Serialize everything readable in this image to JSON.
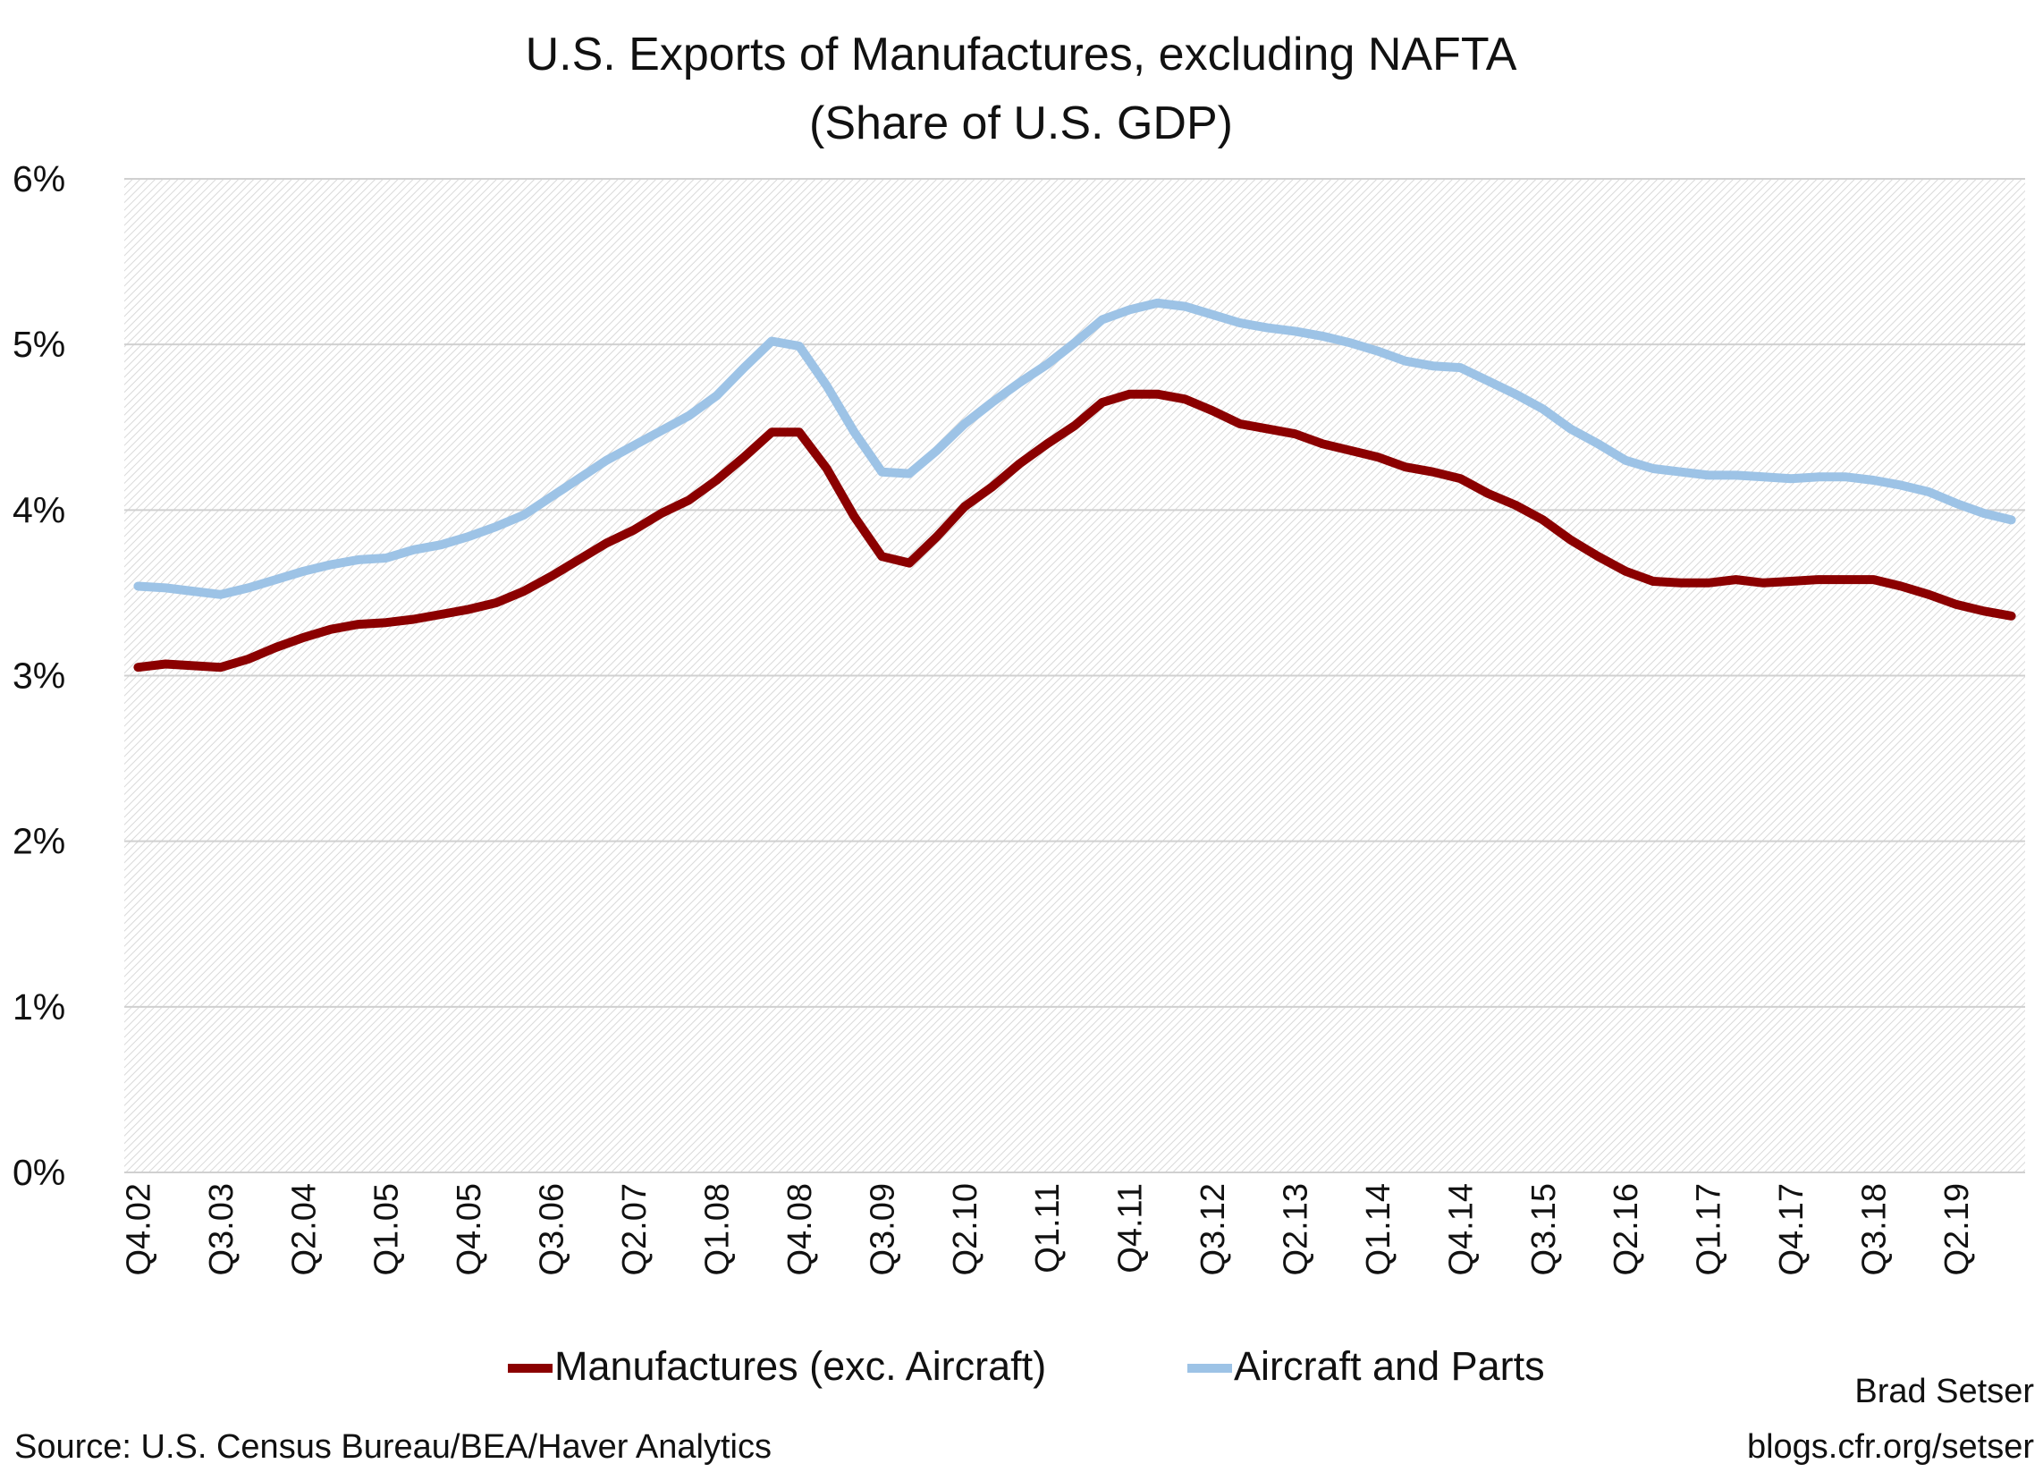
{
  "chart_data": {
    "type": "line",
    "title": "U.S. Exports of Manufactures, excluding NAFTA",
    "subtitle": "(Share of U.S. GDP)",
    "xlabel": "",
    "ylabel": "",
    "ylim": [
      0,
      6
    ],
    "y_ticks": [
      "0%",
      "1%",
      "2%",
      "3%",
      "4%",
      "5%",
      "6%"
    ],
    "grid": true,
    "legend_position": "bottom",
    "x_tick_labels": [
      "Q4.02",
      "Q3.03",
      "Q2.04",
      "Q1.05",
      "Q4.05",
      "Q3.06",
      "Q2.07",
      "Q1.08",
      "Q4.08",
      "Q3.09",
      "Q2.10",
      "Q1.11",
      "Q4.11",
      "Q3.12",
      "Q2.13",
      "Q1.14",
      "Q4.14",
      "Q3.15",
      "Q2.16",
      "Q1.17",
      "Q4.17",
      "Q3.18",
      "Q2.19"
    ],
    "x_first": "Q4.02",
    "x_count": 69,
    "series": [
      {
        "name": "Manufactures (exc. Aircraft)",
        "color": "#8B0000",
        "values": [
          3.05,
          3.07,
          3.06,
          3.05,
          3.1,
          3.17,
          3.23,
          3.28,
          3.31,
          3.32,
          3.34,
          3.37,
          3.4,
          3.44,
          3.51,
          3.6,
          3.7,
          3.8,
          3.88,
          3.98,
          4.06,
          4.18,
          4.32,
          4.47,
          4.47,
          4.25,
          3.96,
          3.72,
          3.68,
          3.84,
          4.02,
          4.14,
          4.28,
          4.4,
          4.51,
          4.65,
          4.7,
          4.7,
          4.67,
          4.6,
          4.52,
          4.49,
          4.46,
          4.4,
          4.36,
          4.32,
          4.26,
          4.23,
          4.19,
          4.1,
          4.03,
          3.94,
          3.82,
          3.72,
          3.63,
          3.57,
          3.56,
          3.56,
          3.58,
          3.56,
          3.57,
          3.58,
          3.58,
          3.58,
          3.54,
          3.49,
          3.43,
          3.39,
          3.36
        ]
      },
      {
        "name": "Aircraft and Parts",
        "color": "#9DC3E6",
        "values": [
          3.54,
          3.53,
          3.51,
          3.49,
          3.53,
          3.58,
          3.63,
          3.67,
          3.7,
          3.71,
          3.76,
          3.79,
          3.84,
          3.9,
          3.97,
          4.08,
          4.19,
          4.3,
          4.39,
          4.48,
          4.57,
          4.69,
          4.86,
          5.02,
          4.99,
          4.75,
          4.47,
          4.23,
          4.22,
          4.36,
          4.52,
          4.65,
          4.77,
          4.88,
          5.01,
          5.15,
          5.21,
          5.25,
          5.23,
          5.18,
          5.13,
          5.1,
          5.08,
          5.05,
          5.01,
          4.96,
          4.9,
          4.87,
          4.86,
          4.78,
          4.7,
          4.61,
          4.49,
          4.4,
          4.3,
          4.25,
          4.23,
          4.21,
          4.21,
          4.2,
          4.19,
          4.2,
          4.2,
          4.18,
          4.15,
          4.11,
          4.04,
          3.98,
          3.94
        ]
      }
    ]
  },
  "footer": {
    "source": "Source: U.S. Census Bureau/BEA/Haver Analytics",
    "author": "Brad Setser",
    "blog": "blogs.cfr.org/setser"
  }
}
